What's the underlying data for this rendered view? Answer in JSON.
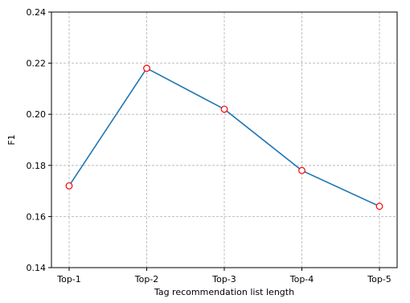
{
  "chart_data": {
    "type": "line",
    "title": "",
    "xlabel": "Tag recommendation list length",
    "ylabel": "F1",
    "categories": [
      "Top-1",
      "Top-2",
      "Top-3",
      "Top-4",
      "Top-5"
    ],
    "series": [
      {
        "values": [
          0.172,
          0.218,
          0.202,
          0.178,
          0.164
        ]
      }
    ],
    "ylim": [
      0.14,
      0.24
    ],
    "yticks": [
      "0.14",
      "0.16",
      "0.18",
      "0.20",
      "0.22",
      "0.24"
    ],
    "grid": true,
    "colors": {
      "line": "#1f77b4",
      "marker_edge": "#ff0000",
      "marker_face": "#ffffff",
      "grid": "#b0b0b0"
    }
  }
}
